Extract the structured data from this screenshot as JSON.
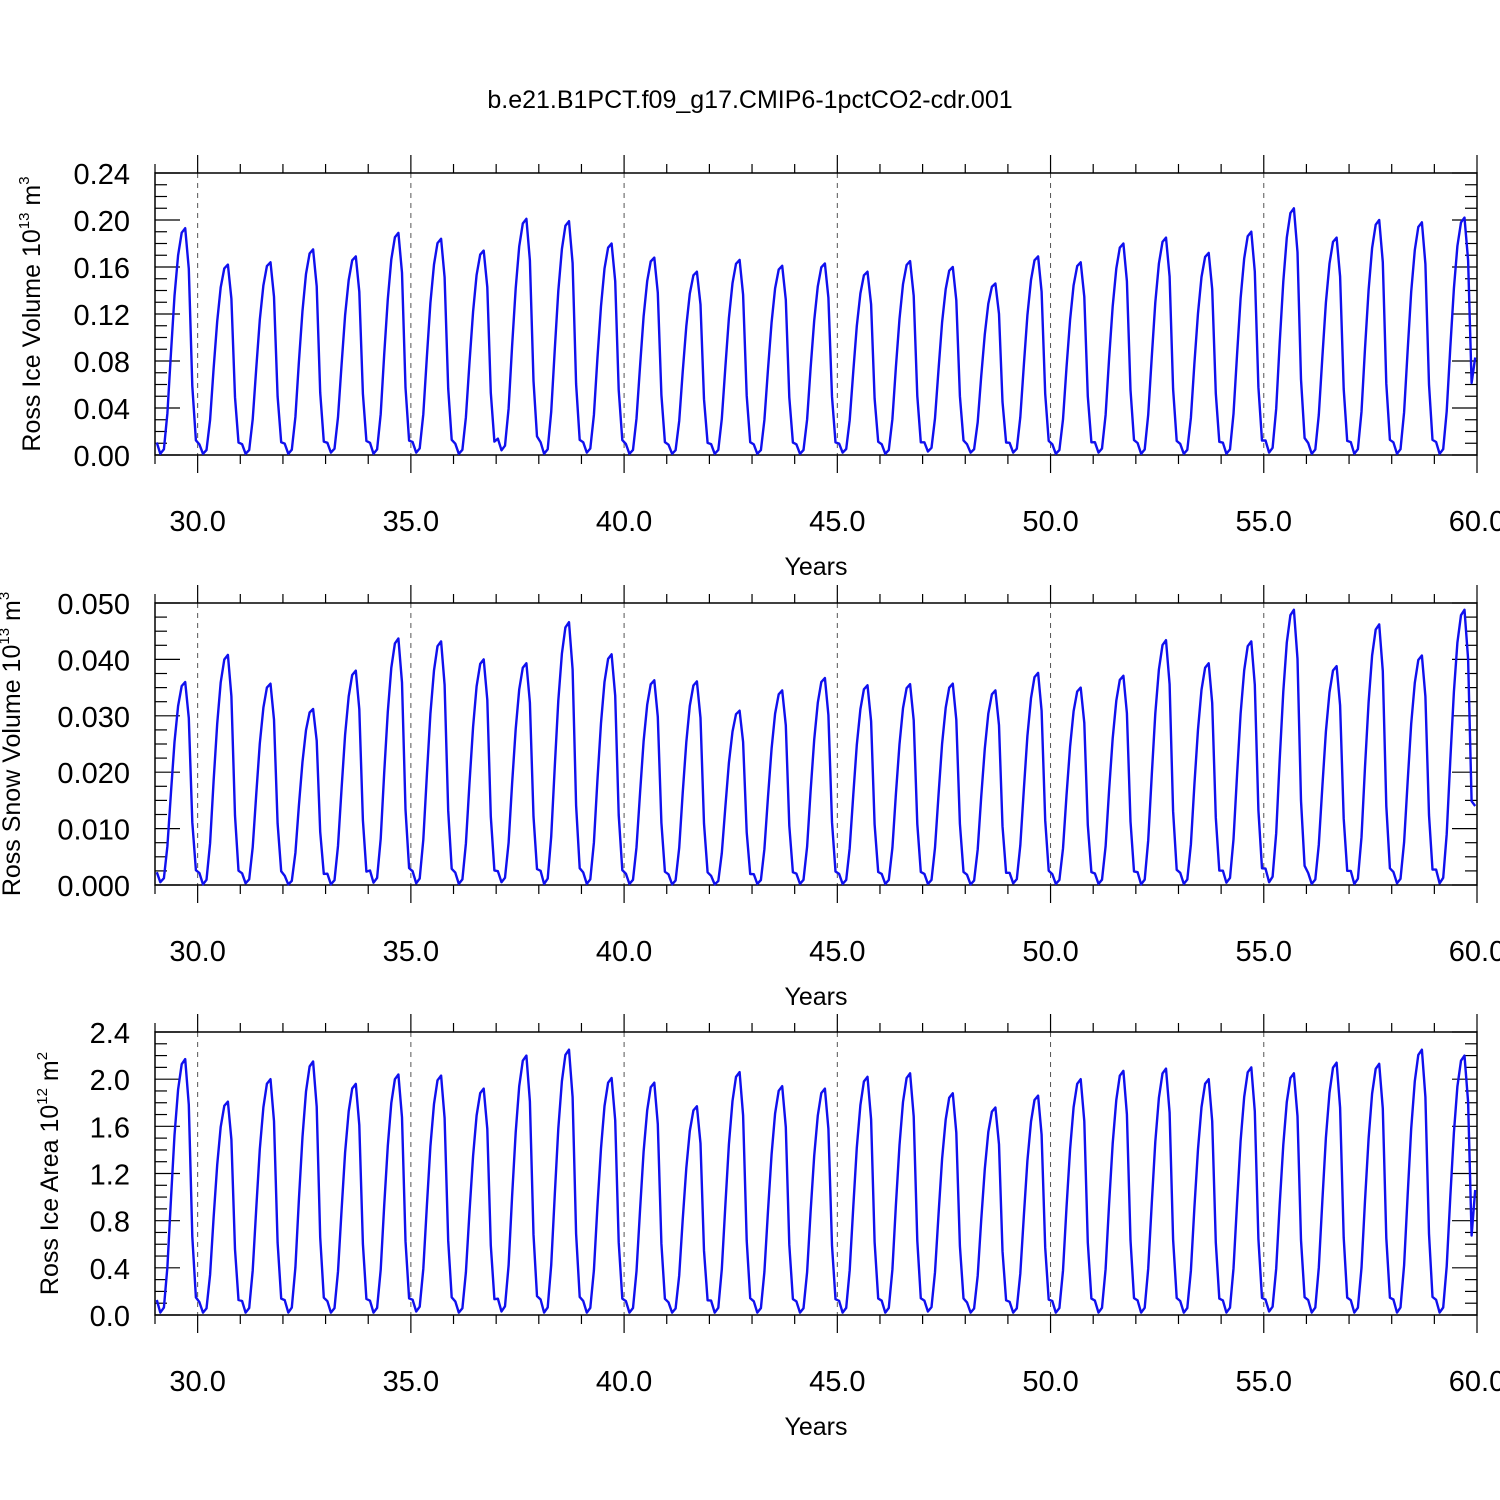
{
  "title": "b.e21.B1PCT.f09_g17.CMIP6-1pctCO2-cdr.001",
  "colors": {
    "line": "#1010ee",
    "frame": "#000000",
    "grid": "#555555"
  },
  "chart_data": [
    {
      "type": "line",
      "ylabel_main": "Ross Ice Volume 10",
      "ylabel_exp": "13",
      "ylabel_unit": " m",
      "ylabel_unit_exp": "3",
      "xlabel": "Years",
      "xlim": [
        29.0,
        60.0
      ],
      "ylim": [
        0.0,
        0.24
      ],
      "x_ticks": [
        "30.0",
        "35.0",
        "40.0",
        "45.0",
        "50.0",
        "55.0",
        "60.0"
      ],
      "y_ticks": [
        "0.00",
        "0.04",
        "0.08",
        "0.12",
        "0.16",
        "0.20",
        "0.24"
      ],
      "grid": "vertical dashed at major x ticks",
      "x_start": 29.0417,
      "x_step": 0.08333,
      "peaks": [
        0.193,
        0.162,
        0.164,
        0.175,
        0.169,
        0.189,
        0.184,
        0.174,
        0.201,
        0.199,
        0.18,
        0.168,
        0.156,
        0.166,
        0.161,
        0.163,
        0.156,
        0.165,
        0.16,
        0.146,
        0.169,
        0.164,
        0.18,
        0.185,
        0.172,
        0.19,
        0.21,
        0.185,
        0.2,
        0.198,
        0.202
      ],
      "troughs": [
        0.001,
        0.001,
        0.001,
        0.001,
        0.002,
        0.001,
        0.002,
        0.001,
        0.004,
        0.001,
        0.002,
        0.001,
        0.001,
        0.001,
        0.001,
        0.001,
        0.002,
        0.001,
        0.003,
        0.002,
        0.002,
        0.001,
        0.002,
        0.001,
        0.001,
        0.001,
        0.002,
        0.001,
        0.001,
        0.001,
        0.001
      ],
      "series": [
        {
          "name": "",
          "color": "#1010ee"
        }
      ],
      "last_value": 0.083
    },
    {
      "type": "line",
      "ylabel_main": "Ross Snow Volume 10",
      "ylabel_exp": "13",
      "ylabel_unit": " m",
      "ylabel_unit_exp": "3",
      "xlabel": "Years",
      "xlim": [
        29.0,
        60.0
      ],
      "ylim": [
        0.0,
        0.05
      ],
      "x_ticks": [
        "30.0",
        "35.0",
        "40.0",
        "45.0",
        "50.0",
        "55.0",
        "60.0"
      ],
      "y_ticks": [
        "0.000",
        "0.010",
        "0.020",
        "0.030",
        "0.040",
        "0.050"
      ],
      "grid": "vertical dashed at major x ticks",
      "x_start": 29.0417,
      "x_step": 0.08333,
      "peaks": [
        0.036,
        0.0408,
        0.0357,
        0.0312,
        0.038,
        0.0437,
        0.0432,
        0.04,
        0.0393,
        0.0466,
        0.0409,
        0.0363,
        0.0361,
        0.0309,
        0.0345,
        0.0367,
        0.0354,
        0.0356,
        0.0357,
        0.0345,
        0.0376,
        0.035,
        0.0371,
        0.0434,
        0.0393,
        0.0432,
        0.0488,
        0.0388,
        0.0462,
        0.0407,
        0.0488
      ],
      "troughs": [
        0.0005,
        0.0001,
        0.0003,
        0.0001,
        0.0001,
        0.0004,
        0.0003,
        0.0002,
        0.0005,
        0.0002,
        0.0002,
        0.0002,
        0.0001,
        0.0001,
        0.0002,
        0.0002,
        0.0002,
        0.0002,
        0.0002,
        0.0001,
        0.0003,
        0.0002,
        0.0002,
        0.0001,
        0.0002,
        0.0004,
        0.0005,
        0.0002,
        0.0002,
        0.0003,
        0.0003
      ],
      "series": [
        {
          "name": "",
          "color": "#1010ee"
        }
      ],
      "last_value": 0.014
    },
    {
      "type": "line",
      "ylabel_main": "Ross Ice Area 10",
      "ylabel_exp": "12",
      "ylabel_unit": " m",
      "ylabel_unit_exp": "2",
      "xlabel": "Years",
      "xlim": [
        29.0,
        60.0
      ],
      "ylim": [
        0.0,
        2.4
      ],
      "x_ticks": [
        "30.0",
        "35.0",
        "40.0",
        "45.0",
        "50.0",
        "55.0",
        "60.0"
      ],
      "y_ticks": [
        "0.0",
        "0.4",
        "0.8",
        "1.2",
        "1.6",
        "2.0",
        "2.4"
      ],
      "grid": "vertical dashed at major x ticks",
      "x_start": 29.0417,
      "x_step": 0.08333,
      "peaks": [
        2.17,
        1.81,
        2.0,
        2.15,
        1.96,
        2.04,
        2.03,
        1.92,
        2.2,
        2.25,
        2.01,
        1.97,
        1.77,
        2.06,
        1.94,
        1.92,
        2.02,
        2.05,
        1.88,
        1.76,
        1.86,
        2.0,
        2.07,
        2.09,
        2.0,
        2.1,
        2.05,
        2.14,
        2.13,
        2.25,
        2.2
      ],
      "troughs": [
        0.02,
        0.02,
        0.02,
        0.02,
        0.02,
        0.02,
        0.03,
        0.02,
        0.03,
        0.02,
        0.02,
        0.02,
        0.02,
        0.02,
        0.02,
        0.02,
        0.02,
        0.02,
        0.03,
        0.02,
        0.02,
        0.02,
        0.02,
        0.02,
        0.02,
        0.02,
        0.03,
        0.02,
        0.02,
        0.02,
        0.02
      ],
      "series": [
        {
          "name": "",
          "color": "#1010ee"
        }
      ],
      "last_value": 1.06
    }
  ]
}
